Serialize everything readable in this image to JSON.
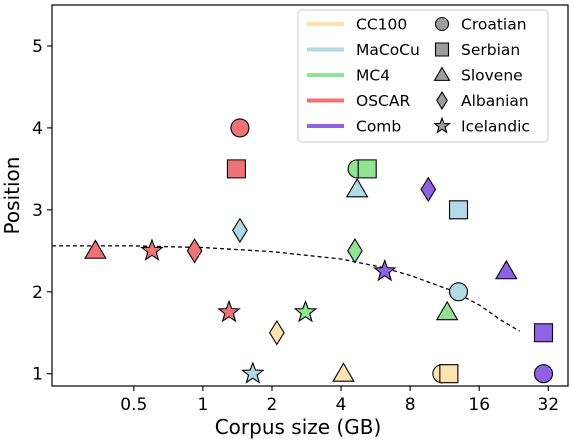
{
  "chart_data": {
    "type": "scatter",
    "title": "",
    "xlabel": "Corpus size (GB)",
    "ylabel": "Position",
    "x_scale": "log2",
    "xlim": [
      0.22,
      39
    ],
    "ylim": [
      0.85,
      5.5
    ],
    "x_ticks": [
      0.5,
      1,
      2,
      4,
      8,
      16,
      32
    ],
    "x_tick_labels": [
      "0.5",
      "1",
      "2",
      "4",
      "8",
      "16",
      "32"
    ],
    "y_ticks": [
      1,
      2,
      3,
      4,
      5
    ],
    "y_tick_labels": [
      "1",
      "2",
      "3",
      "4",
      "5"
    ],
    "grid": false,
    "legend_position": "top-right",
    "datasets": [
      {
        "name": "CC100",
        "color": "#fde3b0"
      },
      {
        "name": "MaCoCu",
        "color": "#b1dae4"
      },
      {
        "name": "MC4",
        "color": "#92e293"
      },
      {
        "name": "OSCAR",
        "color": "#ee7377"
      },
      {
        "name": "Comb",
        "color": "#9061e3"
      }
    ],
    "languages": [
      {
        "name": "Croatian",
        "marker": "circle"
      },
      {
        "name": "Serbian",
        "marker": "square"
      },
      {
        "name": "Slovene",
        "marker": "triangle"
      },
      {
        "name": "Albanian",
        "marker": "diamond"
      },
      {
        "name": "Icelandic",
        "marker": "star"
      }
    ],
    "points": [
      {
        "dataset": "CC100",
        "language": "Croatian",
        "x": 11.0,
        "y": 1.0
      },
      {
        "dataset": "CC100",
        "language": "Serbian",
        "x": 11.8,
        "y": 1.0
      },
      {
        "dataset": "CC100",
        "language": "Slovene",
        "x": 4.1,
        "y": 1.0
      },
      {
        "dataset": "CC100",
        "language": "Albanian",
        "x": 2.1,
        "y": 1.5
      },
      {
        "dataset": "MaCoCu",
        "language": "Croatian",
        "x": 13.0,
        "y": 2.0
      },
      {
        "dataset": "MaCoCu",
        "language": "Serbian",
        "x": 13.0,
        "y": 3.0
      },
      {
        "dataset": "MaCoCu",
        "language": "Slovene",
        "x": 4.7,
        "y": 3.25
      },
      {
        "dataset": "MaCoCu",
        "language": "Albanian",
        "x": 1.45,
        "y": 2.75
      },
      {
        "dataset": "MaCoCu",
        "language": "Icelandic",
        "x": 1.65,
        "y": 1.0
      },
      {
        "dataset": "MC4",
        "language": "Croatian",
        "x": 4.7,
        "y": 3.5
      },
      {
        "dataset": "MC4",
        "language": "Serbian",
        "x": 5.2,
        "y": 3.5
      },
      {
        "dataset": "MC4",
        "language": "Slovene",
        "x": 11.6,
        "y": 1.75
      },
      {
        "dataset": "MC4",
        "language": "Albanian",
        "x": 4.6,
        "y": 2.5
      },
      {
        "dataset": "MC4",
        "language": "Icelandic",
        "x": 2.8,
        "y": 1.75
      },
      {
        "dataset": "OSCAR",
        "language": "Croatian",
        "x": 1.45,
        "y": 4.0
      },
      {
        "dataset": "OSCAR",
        "language": "Serbian",
        "x": 1.4,
        "y": 3.5
      },
      {
        "dataset": "OSCAR",
        "language": "Slovene",
        "x": 0.34,
        "y": 2.5
      },
      {
        "dataset": "OSCAR",
        "language": "Albanian",
        "x": 0.92,
        "y": 2.5
      },
      {
        "dataset": "OSCAR",
        "language": "Icelandic",
        "x": 0.6,
        "y": 2.5
      },
      {
        "dataset": "OSCAR",
        "language": "Icelandic",
        "x": 1.3,
        "y": 1.75
      },
      {
        "dataset": "Comb",
        "language": "Croatian",
        "x": 30.5,
        "y": 1.0
      },
      {
        "dataset": "Comb",
        "language": "Serbian",
        "x": 30.5,
        "y": 1.5
      },
      {
        "dataset": "Comb",
        "language": "Slovene",
        "x": 21.0,
        "y": 2.25
      },
      {
        "dataset": "Comb",
        "language": "Albanian",
        "x": 9.6,
        "y": 3.25
      },
      {
        "dataset": "Comb",
        "language": "Icelandic",
        "x": 6.2,
        "y": 2.25
      }
    ],
    "trend_line": {
      "style": "dashed",
      "points": [
        [
          0.22,
          2.56
        ],
        [
          0.5,
          2.56
        ],
        [
          1,
          2.54
        ],
        [
          2,
          2.49
        ],
        [
          4,
          2.4
        ],
        [
          6,
          2.3
        ],
        [
          8,
          2.2
        ],
        [
          12,
          2.02
        ],
        [
          16,
          1.84
        ],
        [
          20,
          1.65
        ],
        [
          24,
          1.52
        ]
      ]
    }
  }
}
